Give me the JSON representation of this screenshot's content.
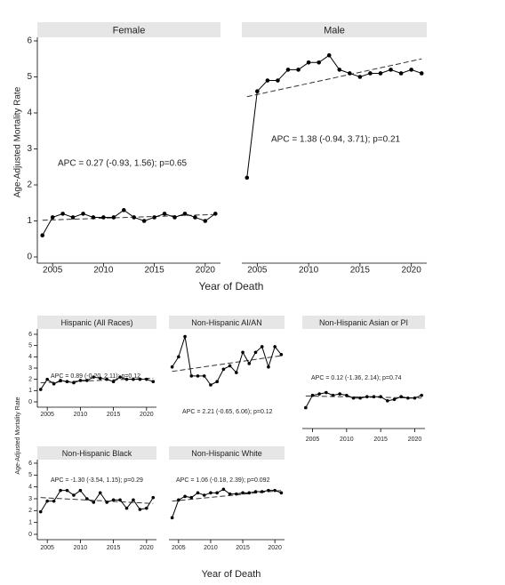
{
  "chart_data": [
    {
      "type": "line",
      "title": "Female",
      "y_label": "Age-Adjusted Mortality Rate",
      "x_label": "Year of Death",
      "x": [
        2004,
        2005,
        2006,
        2007,
        2008,
        2009,
        2010,
        2011,
        2012,
        2013,
        2014,
        2015,
        2016,
        2017,
        2018,
        2019,
        2020,
        2021
      ],
      "values": [
        0.6,
        1.1,
        1.2,
        1.1,
        1.2,
        1.1,
        1.1,
        1.1,
        1.3,
        1.1,
        1.0,
        1.1,
        1.2,
        1.1,
        1.2,
        1.1,
        1.0,
        1.2
      ],
      "trend_values": [
        1.02,
        1.18
      ],
      "annotation": "APC = 0.27 (-0.93, 1.56); p=0.65",
      "xlim": [
        2003.5,
        2021.5
      ],
      "ylim": [
        0,
        6
      ],
      "xticks": [
        2005,
        2010,
        2015,
        2020
      ],
      "yticks": [
        0,
        1,
        2,
        3,
        4,
        5,
        6
      ],
      "color": "#000000"
    },
    {
      "type": "line",
      "title": "Male",
      "x": [
        2004,
        2005,
        2006,
        2007,
        2008,
        2009,
        2010,
        2011,
        2012,
        2013,
        2014,
        2015,
        2016,
        2017,
        2018,
        2019,
        2020,
        2021
      ],
      "values": [
        2.2,
        4.6,
        4.9,
        4.9,
        5.2,
        5.2,
        5.4,
        5.4,
        5.6,
        5.2,
        5.1,
        5.0,
        5.1,
        5.1,
        5.2,
        5.1,
        5.2,
        5.1
      ],
      "trend_values": [
        4.45,
        5.5
      ],
      "annotation": "APC = 1.38 (-0.94, 3.71); p=0.21",
      "xlim": [
        2003.5,
        2021.5
      ],
      "ylim": [
        0,
        6
      ],
      "xticks": [
        2005,
        2010,
        2015,
        2020
      ],
      "color": "#000000"
    },
    {
      "type": "line",
      "title": "Hispanic (All Races)",
      "y_label": "Age-Adjusted Mortality Rate",
      "x_label": "Year of Death",
      "x": [
        2004,
        2005,
        2006,
        2007,
        2008,
        2009,
        2010,
        2011,
        2012,
        2013,
        2014,
        2015,
        2016,
        2017,
        2018,
        2019,
        2020,
        2021
      ],
      "values": [
        1.1,
        2.0,
        1.6,
        1.9,
        1.8,
        1.7,
        1.9,
        1.9,
        2.2,
        2.1,
        2.0,
        1.8,
        2.2,
        2.0,
        2.0,
        2.0,
        2.0,
        1.8
      ],
      "trend_values": [
        1.7,
        2.1
      ],
      "annotation": "APC = 0.89 (-0.20, 2.11); p=0.12",
      "xlim": [
        2003.5,
        2021.5
      ],
      "ylim": [
        0,
        6
      ],
      "xticks": [
        2005,
        2010,
        2015,
        2020
      ],
      "yticks": [
        0,
        1,
        2,
        3,
        4,
        5,
        6
      ],
      "color": "#000000"
    },
    {
      "type": "line",
      "title": "Non-Hispanic AI/AN",
      "x": [
        2004,
        2005,
        2006,
        2007,
        2008,
        2009,
        2010,
        2011,
        2012,
        2013,
        2014,
        2015,
        2016,
        2017,
        2018,
        2019,
        2020,
        2021
      ],
      "values": [
        3.1,
        4.0,
        5.8,
        2.3,
        2.3,
        2.3,
        1.5,
        1.8,
        2.9,
        3.2,
        2.6,
        4.4,
        3.4,
        4.4,
        4.9,
        3.1,
        4.9,
        4.2
      ],
      "trend_values": [
        2.7,
        4.1
      ],
      "annotation": "APC = 2.21 (-0.65, 6.06); p=0.12",
      "xlim": [
        2003.5,
        2021.5
      ],
      "ylim": [
        0,
        6
      ],
      "color": "#000000"
    },
    {
      "type": "line",
      "title": "Non-Hispanic Asian or PI",
      "x": [
        2004,
        2005,
        2006,
        2007,
        2008,
        2009,
        2010,
        2011,
        2012,
        2013,
        2014,
        2015,
        2016,
        2017,
        2018,
        2019,
        2020,
        2021
      ],
      "values": [
        0.8,
        1.7,
        1.8,
        1.9,
        1.7,
        1.8,
        1.7,
        1.5,
        1.5,
        1.6,
        1.6,
        1.6,
        1.3,
        1.4,
        1.6,
        1.5,
        1.5,
        1.7
      ],
      "trend_values": [
        1.65,
        1.5
      ],
      "annotation": "APC = 0.12 (-1.36, 2.14); p=0.74",
      "xlim": [
        2003.5,
        2021.5
      ],
      "ylim": [
        0,
        6
      ],
      "xticks": [
        2005,
        2010,
        2015,
        2020
      ],
      "color": "#000000"
    },
    {
      "type": "line",
      "title": "Non-Hispanic Black",
      "x": [
        2004,
        2005,
        2006,
        2007,
        2008,
        2009,
        2010,
        2011,
        2012,
        2013,
        2014,
        2015,
        2016,
        2017,
        2018,
        2019,
        2020,
        2021
      ],
      "values": [
        1.9,
        2.8,
        2.8,
        3.7,
        3.7,
        3.3,
        3.7,
        3.0,
        2.7,
        3.5,
        2.7,
        2.9,
        2.9,
        2.2,
        2.9,
        2.1,
        2.2,
        3.1
      ],
      "trend_values": [
        3.1,
        2.6
      ],
      "annotation": "APC = -1.30 (-3.54, 1.15); p=0.29",
      "xlim": [
        2003.5,
        2021.5
      ],
      "ylim": [
        0,
        6
      ],
      "xticks": [
        2005,
        2010,
        2015,
        2020
      ],
      "yticks": [
        0,
        1,
        2,
        3,
        4,
        5,
        6
      ],
      "color": "#000000"
    },
    {
      "type": "line",
      "title": "Non-Hispanic White",
      "x": [
        2004,
        2005,
        2006,
        2007,
        2008,
        2009,
        2010,
        2011,
        2012,
        2013,
        2014,
        2015,
        2016,
        2017,
        2018,
        2019,
        2020,
        2021
      ],
      "values": [
        1.4,
        2.9,
        3.2,
        3.1,
        3.5,
        3.3,
        3.5,
        3.5,
        3.8,
        3.4,
        3.4,
        3.5,
        3.5,
        3.6,
        3.6,
        3.7,
        3.7,
        3.5
      ],
      "trend_values": [
        2.8,
        3.7
      ],
      "annotation": "APC = 1.06 (-0.18, 2.39); p=0.092",
      "xlim": [
        2003.5,
        2021.5
      ],
      "ylim": [
        0,
        6
      ],
      "xticks": [
        2005,
        2010,
        2015,
        2020
      ],
      "color": "#000000"
    }
  ]
}
